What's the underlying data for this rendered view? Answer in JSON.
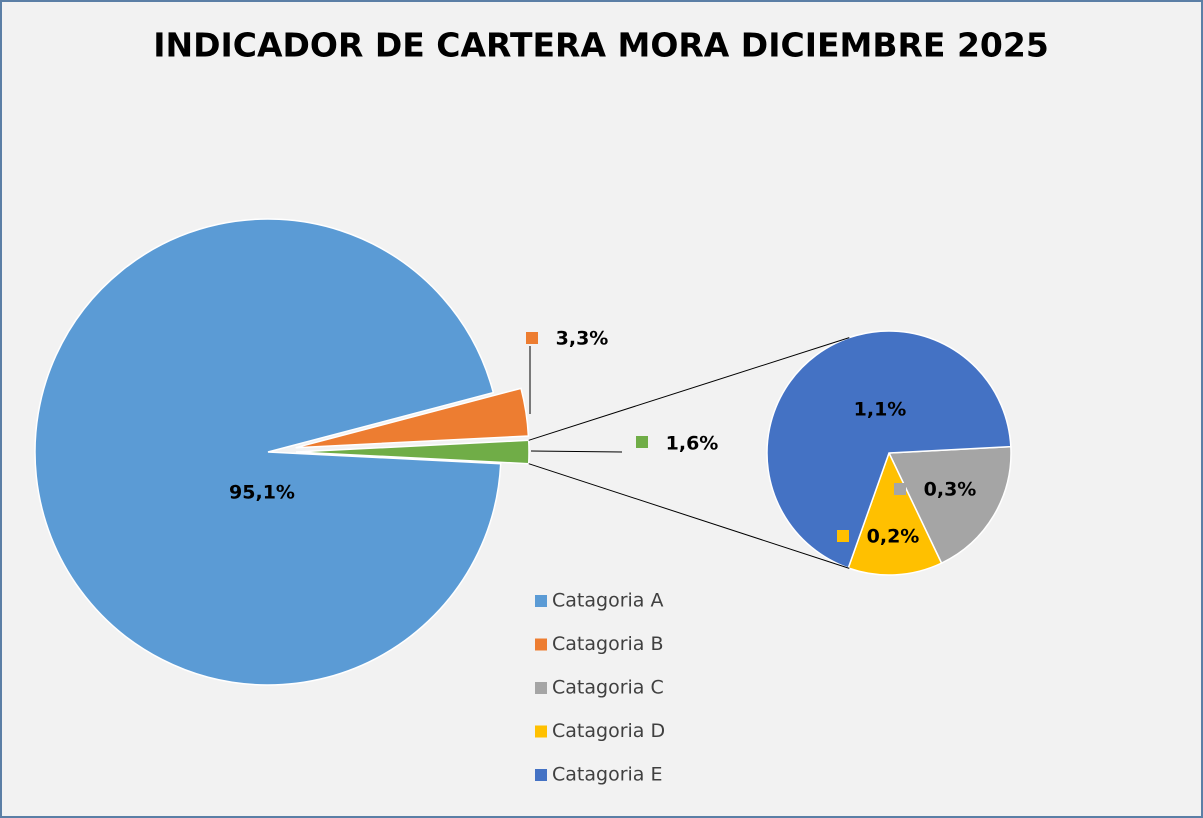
{
  "chart_data": {
    "type": "pie-of-pie",
    "title": "INDICADOR DE CARTERA MORA  DICIEMBRE 2025",
    "categories": [
      "Catagoria A",
      "Catagoria B",
      "Catagoria C",
      "Catagoria D",
      "Catagoria E"
    ],
    "values": [
      95.1,
      3.3,
      0.3,
      0.2,
      1.1
    ],
    "value_labels": [
      "95,1%",
      "3,3%",
      "0,3%",
      "0,2%",
      "1,1%"
    ],
    "colors": [
      "#5b9bd5",
      "#ed7d31",
      "#a5a5a5",
      "#ffc000",
      "#4472c4"
    ],
    "secondary": [
      2,
      3,
      4
    ],
    "other": {
      "value": 1.6,
      "label": "1,6%",
      "color": "#70ad47"
    },
    "legend": "bottom-center"
  }
}
